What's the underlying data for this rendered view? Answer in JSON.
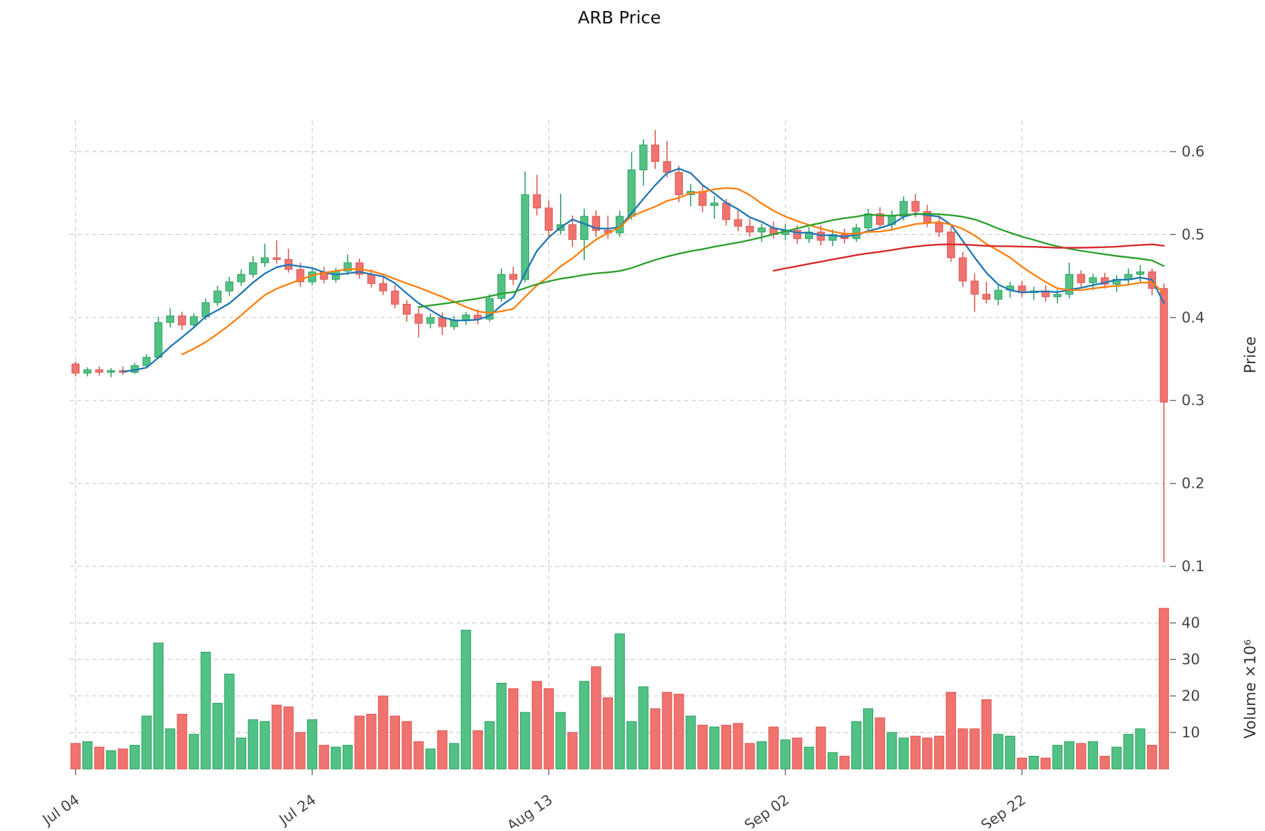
{
  "chart_data": {
    "type": "candlestick_with_volume",
    "title": "ARB Price",
    "price_axis_label": "Price",
    "volume_axis_label": "Volume ×10⁶",
    "x_tick_labels": [
      "Jul 04",
      "Jul 24",
      "Aug 13",
      "Sep 02",
      "Sep 22"
    ],
    "x_tick_indices": [
      0,
      20,
      40,
      60,
      80
    ],
    "price_ticks": [
      0.1,
      0.2,
      0.3,
      0.4,
      0.5,
      0.6
    ],
    "price_range": [
      0.1,
      0.6
    ],
    "volume_ticks": [
      10,
      20,
      30,
      40
    ],
    "volume_unit": "10^6",
    "grid": true,
    "legend": "none",
    "colors": {
      "up": "#52c284",
      "down": "#f0736f",
      "up_edge": "#2e9e63",
      "down_edge": "#d95853",
      "grid": "#c9c9c9",
      "axis_text": "#444444",
      "ma_short": "#1f77b4",
      "ma_mid": "#ff7f0e",
      "ma_long": "#2ca02c",
      "ma_longest": "#d62728"
    },
    "moving_averages": [
      {
        "window": 5,
        "color": "#1f77b4"
      },
      {
        "window": 10,
        "color": "#ff7f0e"
      },
      {
        "window": 30,
        "color": "#2ca02c"
      },
      {
        "window": 60,
        "color": "#d62728"
      }
    ],
    "open": [
      0.344,
      0.333,
      0.337,
      0.334,
      0.336,
      0.334,
      0.342,
      0.352,
      0.394,
      0.402,
      0.391,
      0.401,
      0.418,
      0.432,
      0.443,
      0.452,
      0.466,
      0.472,
      0.47,
      0.458,
      0.443,
      0.455,
      0.446,
      0.456,
      0.466,
      0.452,
      0.441,
      0.432,
      0.416,
      0.404,
      0.393,
      0.4,
      0.389,
      0.397,
      0.403,
      0.398,
      0.423,
      0.452,
      0.446,
      0.548,
      0.532,
      0.505,
      0.512,
      0.494,
      0.522,
      0.505,
      0.502,
      0.522,
      0.578,
      0.608,
      0.588,
      0.575,
      0.548,
      0.552,
      0.535,
      0.538,
      0.518,
      0.51,
      0.503,
      0.508,
      0.5,
      0.505,
      0.495,
      0.503,
      0.493,
      0.5,
      0.495,
      0.508,
      0.525,
      0.512,
      0.522,
      0.54,
      0.528,
      0.515,
      0.503,
      0.472,
      0.444,
      0.428,
      0.422,
      0.433,
      0.438,
      0.43,
      0.432,
      0.425,
      0.428,
      0.452,
      0.442,
      0.448,
      0.44,
      0.446,
      0.452,
      0.455,
      0.435
    ],
    "high": [
      0.347,
      0.34,
      0.341,
      0.339,
      0.341,
      0.345,
      0.356,
      0.401,
      0.411,
      0.407,
      0.405,
      0.423,
      0.438,
      0.449,
      0.458,
      0.474,
      0.489,
      0.493,
      0.483,
      0.466,
      0.459,
      0.461,
      0.46,
      0.476,
      0.471,
      0.458,
      0.449,
      0.439,
      0.421,
      0.411,
      0.405,
      0.406,
      0.402,
      0.407,
      0.41,
      0.428,
      0.459,
      0.461,
      0.576,
      0.572,
      0.541,
      0.549,
      0.523,
      0.531,
      0.529,
      0.523,
      0.529,
      0.599,
      0.615,
      0.626,
      0.613,
      0.583,
      0.561,
      0.559,
      0.546,
      0.543,
      0.529,
      0.519,
      0.513,
      0.516,
      0.513,
      0.511,
      0.509,
      0.511,
      0.506,
      0.507,
      0.513,
      0.531,
      0.533,
      0.529,
      0.546,
      0.549,
      0.536,
      0.523,
      0.509,
      0.479,
      0.453,
      0.443,
      0.439,
      0.443,
      0.444,
      0.437,
      0.439,
      0.434,
      0.466,
      0.457,
      0.453,
      0.454,
      0.451,
      0.459,
      0.463,
      0.459,
      0.441
    ],
    "low": [
      0.329,
      0.329,
      0.33,
      0.328,
      0.331,
      0.332,
      0.34,
      0.35,
      0.388,
      0.385,
      0.387,
      0.397,
      0.414,
      0.426,
      0.438,
      0.448,
      0.461,
      0.465,
      0.454,
      0.437,
      0.439,
      0.441,
      0.442,
      0.451,
      0.447,
      0.436,
      0.427,
      0.411,
      0.395,
      0.376,
      0.387,
      0.379,
      0.385,
      0.391,
      0.392,
      0.395,
      0.419,
      0.439,
      0.442,
      0.523,
      0.497,
      0.5,
      0.485,
      0.469,
      0.497,
      0.495,
      0.497,
      0.518,
      0.559,
      0.579,
      0.569,
      0.539,
      0.534,
      0.527,
      0.519,
      0.511,
      0.504,
      0.497,
      0.491,
      0.495,
      0.493,
      0.489,
      0.49,
      0.487,
      0.486,
      0.489,
      0.491,
      0.503,
      0.507,
      0.505,
      0.517,
      0.521,
      0.509,
      0.497,
      0.467,
      0.437,
      0.407,
      0.417,
      0.415,
      0.424,
      0.425,
      0.421,
      0.419,
      0.417,
      0.423,
      0.437,
      0.433,
      0.435,
      0.431,
      0.439,
      0.443,
      0.427,
      0.105
    ],
    "close": [
      0.333,
      0.337,
      0.334,
      0.336,
      0.334,
      0.342,
      0.352,
      0.394,
      0.402,
      0.391,
      0.401,
      0.418,
      0.432,
      0.443,
      0.452,
      0.466,
      0.472,
      0.47,
      0.458,
      0.443,
      0.455,
      0.446,
      0.456,
      0.466,
      0.452,
      0.441,
      0.432,
      0.416,
      0.404,
      0.393,
      0.4,
      0.389,
      0.397,
      0.403,
      0.398,
      0.423,
      0.452,
      0.446,
      0.548,
      0.532,
      0.505,
      0.512,
      0.494,
      0.522,
      0.505,
      0.502,
      0.522,
      0.578,
      0.608,
      0.588,
      0.575,
      0.548,
      0.552,
      0.535,
      0.538,
      0.518,
      0.51,
      0.503,
      0.508,
      0.5,
      0.505,
      0.495,
      0.503,
      0.493,
      0.5,
      0.495,
      0.508,
      0.525,
      0.512,
      0.522,
      0.54,
      0.528,
      0.515,
      0.503,
      0.472,
      0.444,
      0.428,
      0.422,
      0.433,
      0.438,
      0.43,
      0.432,
      0.425,
      0.428,
      0.452,
      0.442,
      0.448,
      0.44,
      0.446,
      0.452,
      0.455,
      0.435,
      0.298
    ],
    "volume": [
      7,
      7.5,
      6,
      5,
      5.5,
      6.5,
      14.5,
      34.5,
      11,
      15,
      9.5,
      32,
      18,
      26,
      8.5,
      13.5,
      13,
      17.5,
      17,
      10,
      13.5,
      6.5,
      6,
      6.5,
      14.5,
      15,
      20,
      14.5,
      13,
      7.5,
      5.5,
      10.5,
      7,
      38,
      10.5,
      13,
      23.5,
      22,
      15.5,
      24,
      22,
      15.5,
      10,
      24,
      28,
      19.5,
      37,
      13,
      22.5,
      16.5,
      21,
      20.5,
      14.5,
      12,
      11.5,
      12,
      12.5,
      7,
      7.5,
      11.5,
      8,
      8.5,
      6,
      11.5,
      4.5,
      3.5,
      13,
      16.5,
      14,
      10,
      8.5,
      9,
      8.5,
      9,
      21,
      11,
      11,
      19,
      9.5,
      9,
      3,
      3.5,
      3,
      6.5,
      7.5,
      7,
      7.5,
      3.5,
      6,
      9.5,
      11,
      6.5,
      44
    ]
  }
}
